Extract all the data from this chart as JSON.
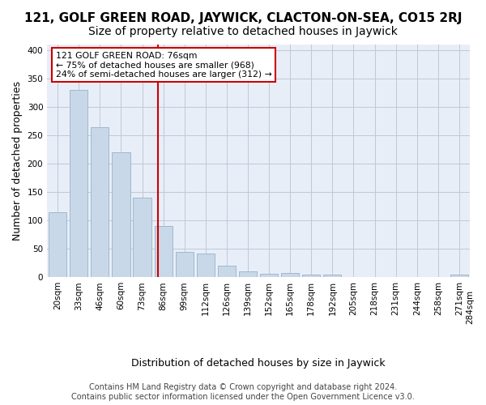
{
  "title1": "121, GOLF GREEN ROAD, JAYWICK, CLACTON-ON-SEA, CO15 2RJ",
  "title2": "Size of property relative to detached houses in Jaywick",
  "xlabel": "Distribution of detached houses by size in Jaywick",
  "ylabel": "Number of detached properties",
  "footer1": "Contains HM Land Registry data © Crown copyright and database right 2024.",
  "footer2": "Contains public sector information licensed under the Open Government Licence v3.0.",
  "bin_labels": [
    "20sqm",
    "33sqm",
    "46sqm",
    "60sqm",
    "73sqm",
    "86sqm",
    "99sqm",
    "112sqm",
    "126sqm",
    "139sqm",
    "152sqm",
    "165sqm",
    "178sqm",
    "192sqm",
    "205sqm",
    "218sqm",
    "231sqm",
    "244sqm",
    "258sqm",
    "271sqm",
    "284sqm"
  ],
  "bar_heights": [
    115,
    330,
    265,
    220,
    140,
    90,
    45,
    42,
    20,
    10,
    6,
    8,
    4,
    4,
    0,
    0,
    0,
    0,
    0,
    5
  ],
  "bar_color": "#c8d8e8",
  "bar_edge_color": "#a0b8cc",
  "red_line_x": 4.75,
  "annotation_lines": [
    "121 GOLF GREEN ROAD: 76sqm",
    "← 75% of detached houses are smaller (968)",
    "24% of semi-detached houses are larger (312) →"
  ],
  "annotation_box_color": "#ffffff",
  "annotation_box_edge": "#cc0000",
  "red_line_color": "#cc0000",
  "ylim": [
    0,
    410
  ],
  "yticks": [
    0,
    50,
    100,
    150,
    200,
    250,
    300,
    350,
    400
  ],
  "grid_color": "#c0c8d8",
  "bg_color": "#e8eef8",
  "title1_fontsize": 11,
  "title2_fontsize": 10,
  "xlabel_fontsize": 9,
  "ylabel_fontsize": 9,
  "tick_fontsize": 7.5,
  "footer_fontsize": 7
}
